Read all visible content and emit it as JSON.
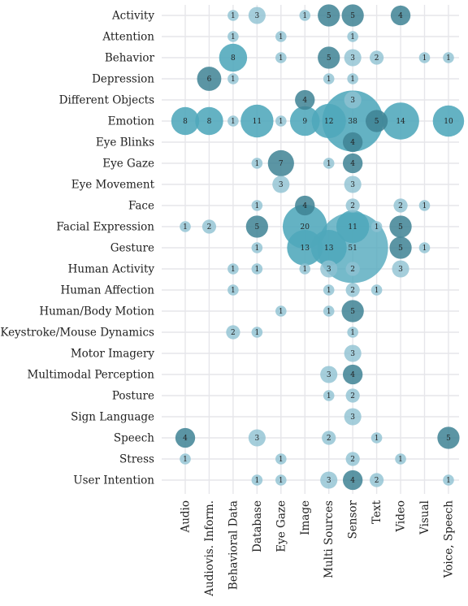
{
  "chart_data": {
    "type": "scatter",
    "title": "",
    "xlabel": "",
    "ylabel": "",
    "grid": true,
    "legend": "none",
    "x_categories": [
      "Audio",
      "Audiovis. Inform.",
      "Behavioral Data",
      "Database",
      "Eye Gaze",
      "Image",
      "Multi Sources",
      "Sensor",
      "Text",
      "Video",
      "Visual",
      "Voice, Speech"
    ],
    "y_categories": [
      "Activity",
      "Attention",
      "Behavior",
      "Depression",
      "Different Objects",
      "Emotion",
      "Eye Blinks",
      "Eye Gaze",
      "Eye Movement",
      "Face",
      "Facial Expression",
      "Gesture",
      "Human Activity",
      "Human Affection",
      "Human/Body Motion",
      "Keystroke/Mouse Dynamics",
      "Motor Imagery",
      "Multimodal Perception",
      "Posture",
      "Sign Language",
      "Speech",
      "Stress",
      "User Intention"
    ],
    "colors": {
      "light": "#8fc2d2",
      "mid": "#4ea7bb",
      "dark": "#3e8294"
    },
    "points": [
      {
        "x": "Behavioral Data",
        "y": "Activity",
        "value": 1
      },
      {
        "x": "Database",
        "y": "Activity",
        "value": 3
      },
      {
        "x": "Image",
        "y": "Activity",
        "value": 1
      },
      {
        "x": "Multi Sources",
        "y": "Activity",
        "value": 5
      },
      {
        "x": "Sensor",
        "y": "Activity",
        "value": 5
      },
      {
        "x": "Video",
        "y": "Activity",
        "value": 4
      },
      {
        "x": "Behavioral Data",
        "y": "Attention",
        "value": 1
      },
      {
        "x": "Eye Gaze",
        "y": "Attention",
        "value": 1
      },
      {
        "x": "Sensor",
        "y": "Attention",
        "value": 1
      },
      {
        "x": "Behavioral Data",
        "y": "Behavior",
        "value": 8
      },
      {
        "x": "Eye Gaze",
        "y": "Behavior",
        "value": 1
      },
      {
        "x": "Multi Sources",
        "y": "Behavior",
        "value": 5
      },
      {
        "x": "Sensor",
        "y": "Behavior",
        "value": 3
      },
      {
        "x": "Text",
        "y": "Behavior",
        "value": 2
      },
      {
        "x": "Visual",
        "y": "Behavior",
        "value": 1
      },
      {
        "x": "Voice, Speech",
        "y": "Behavior",
        "value": 1
      },
      {
        "x": "Audiovis. Inform.",
        "y": "Depression",
        "value": 6
      },
      {
        "x": "Behavioral Data",
        "y": "Depression",
        "value": 1
      },
      {
        "x": "Multi Sources",
        "y": "Depression",
        "value": 1
      },
      {
        "x": "Sensor",
        "y": "Depression",
        "value": 1
      },
      {
        "x": "Image",
        "y": "Different Objects",
        "value": 4
      },
      {
        "x": "Sensor",
        "y": "Different Objects",
        "value": 3
      },
      {
        "x": "Audio",
        "y": "Emotion",
        "value": 8
      },
      {
        "x": "Audiovis. Inform.",
        "y": "Emotion",
        "value": 8
      },
      {
        "x": "Behavioral Data",
        "y": "Emotion",
        "value": 1
      },
      {
        "x": "Database",
        "y": "Emotion",
        "value": 11
      },
      {
        "x": "Eye Gaze",
        "y": "Emotion",
        "value": 1
      },
      {
        "x": "Image",
        "y": "Emotion",
        "value": 9
      },
      {
        "x": "Multi Sources",
        "y": "Emotion",
        "value": 12
      },
      {
        "x": "Sensor",
        "y": "Emotion",
        "value": 38
      },
      {
        "x": "Text",
        "y": "Emotion",
        "value": 5
      },
      {
        "x": "Video",
        "y": "Emotion",
        "value": 14
      },
      {
        "x": "Voice, Speech",
        "y": "Emotion",
        "value": 10
      },
      {
        "x": "Sensor",
        "y": "Eye Blinks",
        "value": 4
      },
      {
        "x": "Database",
        "y": "Eye Gaze",
        "value": 1
      },
      {
        "x": "Eye Gaze",
        "y": "Eye Gaze",
        "value": 7
      },
      {
        "x": "Multi Sources",
        "y": "Eye Gaze",
        "value": 1
      },
      {
        "x": "Sensor",
        "y": "Eye Gaze",
        "value": 4
      },
      {
        "x": "Eye Gaze",
        "y": "Eye Movement",
        "value": 3
      },
      {
        "x": "Sensor",
        "y": "Eye Movement",
        "value": 3
      },
      {
        "x": "Database",
        "y": "Face",
        "value": 1
      },
      {
        "x": "Image",
        "y": "Face",
        "value": 4
      },
      {
        "x": "Sensor",
        "y": "Face",
        "value": 2
      },
      {
        "x": "Video",
        "y": "Face",
        "value": 2
      },
      {
        "x": "Visual",
        "y": "Face",
        "value": 1
      },
      {
        "x": "Audio",
        "y": "Facial Expression",
        "value": 1
      },
      {
        "x": "Audiovis. Inform.",
        "y": "Facial Expression",
        "value": 2
      },
      {
        "x": "Database",
        "y": "Facial Expression",
        "value": 5
      },
      {
        "x": "Image",
        "y": "Facial Expression",
        "value": 20
      },
      {
        "x": "Sensor",
        "y": "Facial Expression",
        "value": 11
      },
      {
        "x": "Text",
        "y": "Facial Expression",
        "value": 1
      },
      {
        "x": "Video",
        "y": "Facial Expression",
        "value": 5
      },
      {
        "x": "Database",
        "y": "Gesture",
        "value": 1
      },
      {
        "x": "Image",
        "y": "Gesture",
        "value": 13
      },
      {
        "x": "Multi Sources",
        "y": "Gesture",
        "value": 13
      },
      {
        "x": "Sensor",
        "y": "Gesture",
        "value": 51
      },
      {
        "x": "Video",
        "y": "Gesture",
        "value": 5
      },
      {
        "x": "Visual",
        "y": "Gesture",
        "value": 1
      },
      {
        "x": "Behavioral Data",
        "y": "Human Activity",
        "value": 1
      },
      {
        "x": "Database",
        "y": "Human Activity",
        "value": 1
      },
      {
        "x": "Image",
        "y": "Human Activity",
        "value": 1
      },
      {
        "x": "Multi Sources",
        "y": "Human Activity",
        "value": 3
      },
      {
        "x": "Sensor",
        "y": "Human Activity",
        "value": 2
      },
      {
        "x": "Video",
        "y": "Human Activity",
        "value": 3
      },
      {
        "x": "Behavioral Data",
        "y": "Human Affection",
        "value": 1
      },
      {
        "x": "Multi Sources",
        "y": "Human Affection",
        "value": 1
      },
      {
        "x": "Sensor",
        "y": "Human Affection",
        "value": 2
      },
      {
        "x": "Text",
        "y": "Human Affection",
        "value": 1
      },
      {
        "x": "Eye Gaze",
        "y": "Human/Body Motion",
        "value": 1
      },
      {
        "x": "Multi Sources",
        "y": "Human/Body Motion",
        "value": 1
      },
      {
        "x": "Sensor",
        "y": "Human/Body Motion",
        "value": 5
      },
      {
        "x": "Behavioral Data",
        "y": "Keystroke/Mouse Dynamics",
        "value": 2
      },
      {
        "x": "Database",
        "y": "Keystroke/Mouse Dynamics",
        "value": 1
      },
      {
        "x": "Sensor",
        "y": "Keystroke/Mouse Dynamics",
        "value": 1
      },
      {
        "x": "Sensor",
        "y": "Motor Imagery",
        "value": 3
      },
      {
        "x": "Multi Sources",
        "y": "Multimodal Perception",
        "value": 3
      },
      {
        "x": "Sensor",
        "y": "Multimodal Perception",
        "value": 4
      },
      {
        "x": "Multi Sources",
        "y": "Posture",
        "value": 1
      },
      {
        "x": "Sensor",
        "y": "Posture",
        "value": 2
      },
      {
        "x": "Sensor",
        "y": "Sign Language",
        "value": 3
      },
      {
        "x": "Audio",
        "y": "Speech",
        "value": 4
      },
      {
        "x": "Database",
        "y": "Speech",
        "value": 3
      },
      {
        "x": "Multi Sources",
        "y": "Speech",
        "value": 2
      },
      {
        "x": "Text",
        "y": "Speech",
        "value": 1
      },
      {
        "x": "Voice, Speech",
        "y": "Speech",
        "value": 5
      },
      {
        "x": "Audio",
        "y": "Stress",
        "value": 1
      },
      {
        "x": "Eye Gaze",
        "y": "Stress",
        "value": 1
      },
      {
        "x": "Sensor",
        "y": "Stress",
        "value": 2
      },
      {
        "x": "Video",
        "y": "Stress",
        "value": 1
      },
      {
        "x": "Database",
        "y": "User Intention",
        "value": 1
      },
      {
        "x": "Eye Gaze",
        "y": "User Intention",
        "value": 1
      },
      {
        "x": "Multi Sources",
        "y": "User Intention",
        "value": 3
      },
      {
        "x": "Sensor",
        "y": "User Intention",
        "value": 4
      },
      {
        "x": "Text",
        "y": "User Intention",
        "value": 2
      },
      {
        "x": "Voice, Speech",
        "y": "User Intention",
        "value": 1
      }
    ]
  }
}
